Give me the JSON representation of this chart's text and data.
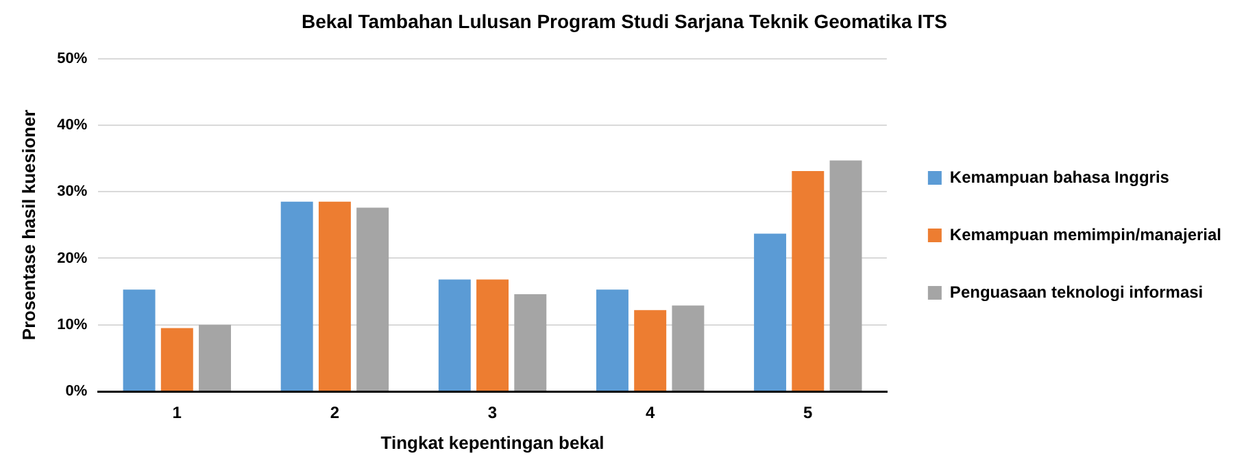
{
  "chart_data": {
    "type": "bar",
    "title": "Bekal Tambahan Lulusan Program Studi Sarjana Teknik Geomatika ITS",
    "xlabel": "Tingkat kepentingan bekal",
    "ylabel": "Prosentase hasil kuesioner",
    "categories": [
      "1",
      "2",
      "3",
      "4",
      "5"
    ],
    "series": [
      {
        "name": "Kemampuan bahasa Inggris",
        "color": "#5b9bd5",
        "values": [
          15.3,
          28.5,
          16.8,
          15.3,
          23.7
        ]
      },
      {
        "name": "Kemampuan memimpin/manajerial",
        "color": "#ed7d31",
        "values": [
          9.5,
          28.5,
          16.8,
          12.2,
          33.1
        ]
      },
      {
        "name": "Penguasaan teknologi informasi",
        "color": "#a5a5a5",
        "values": [
          10.0,
          27.6,
          14.6,
          12.9,
          34.7
        ]
      }
    ],
    "ylim": [
      0,
      50
    ],
    "yticks": [
      {
        "value": 0,
        "label": "0%"
      },
      {
        "value": 10,
        "label": "10%"
      },
      {
        "value": 20,
        "label": "20%"
      },
      {
        "value": 30,
        "label": "30%"
      },
      {
        "value": 40,
        "label": "40%"
      },
      {
        "value": 50,
        "label": "50%"
      }
    ],
    "grid": "y",
    "legend": "right"
  }
}
